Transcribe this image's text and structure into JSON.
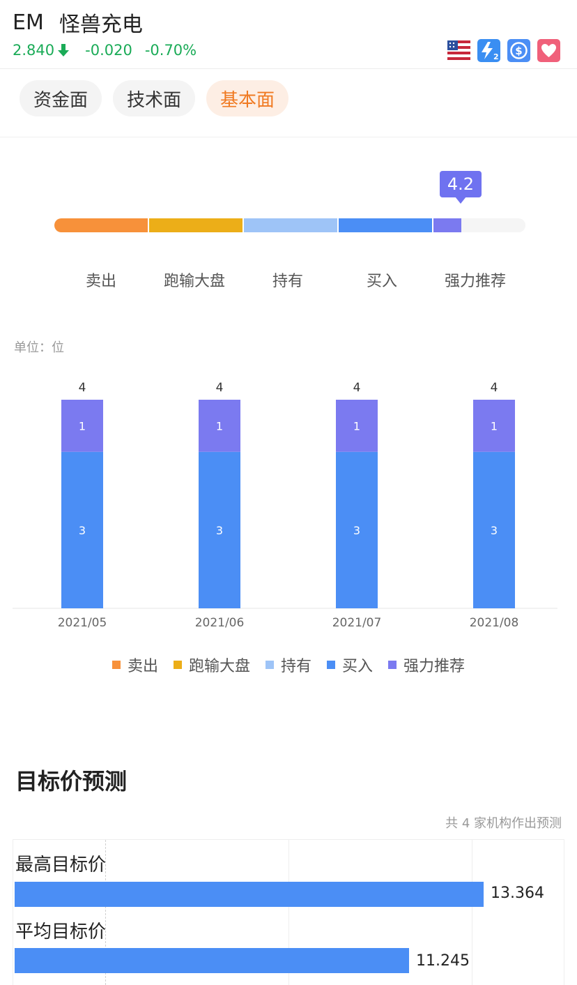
{
  "header": {
    "ticker": "EM",
    "name": "怪兽充电",
    "price": "2.840",
    "change": "-0.020",
    "change_pct": "-0.70%",
    "quote_color": "#1aab57",
    "icons": [
      {
        "name": "us-flag-icon",
        "color": "#c7283b"
      },
      {
        "name": "level2-icon",
        "color": "#3a8ef2"
      },
      {
        "name": "dollar-icon",
        "color": "#4b8ef5"
      },
      {
        "name": "favorite-heart-icon",
        "color": "#f0607a"
      }
    ]
  },
  "tabs": [
    {
      "label": "资金面",
      "active": false
    },
    {
      "label": "技术面",
      "active": false
    },
    {
      "label": "基本面",
      "active": true
    }
  ],
  "rating": {
    "score": "4.2",
    "categories": [
      "卖出",
      "跑输大盘",
      "持有",
      "买入",
      "强力推荐"
    ],
    "colors": [
      "#f7913a",
      "#ecae18",
      "#9ec4f7",
      "#4b8ef5",
      "#7b7af0"
    ]
  },
  "chart_data": {
    "type": "bar",
    "stacked": true,
    "unit_label": "单位：位",
    "categories": [
      "2021/05",
      "2021/06",
      "2021/07",
      "2021/08"
    ],
    "series": [
      {
        "name": "卖出",
        "color": "#f7913a",
        "values": [
          0,
          0,
          0,
          0
        ]
      },
      {
        "name": "跑输大盘",
        "color": "#ecae18",
        "values": [
          0,
          0,
          0,
          0
        ]
      },
      {
        "name": "持有",
        "color": "#9ec4f7",
        "values": [
          0,
          0,
          0,
          0
        ]
      },
      {
        "name": "买入",
        "color": "#4b8ef5",
        "values": [
          3,
          3,
          3,
          3
        ]
      },
      {
        "name": "强力推荐",
        "color": "#7b7af0",
        "values": [
          1,
          1,
          1,
          1
        ]
      }
    ],
    "totals": [
      4,
      4,
      4,
      4
    ],
    "ylim": [
      0,
      4
    ],
    "legend": "bottom"
  },
  "target_price": {
    "title": "目标价预测",
    "org_note": "共 4 家机构作出预测",
    "items": [
      {
        "label": "最高目标价",
        "value": "13.364"
      },
      {
        "label": "平均目标价",
        "value": "11.245"
      }
    ],
    "bar_color": "#4b8ef5"
  }
}
